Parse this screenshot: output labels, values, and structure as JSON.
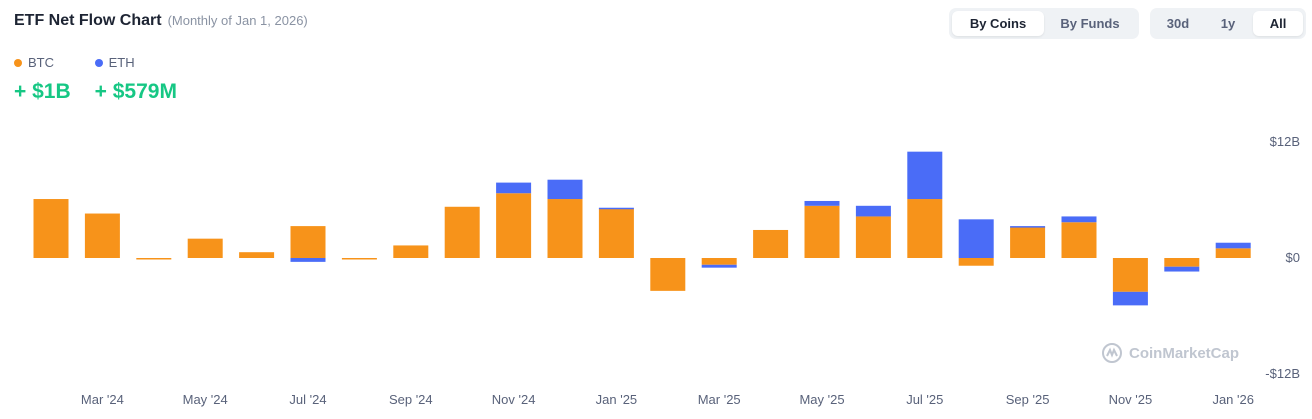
{
  "header": {
    "title": "ETF Net Flow Chart",
    "subtitle": "(Monthly of Jan 1, 2026)"
  },
  "legend": [
    {
      "name": "BTC",
      "value": "+ $1B",
      "color": "#f7931a"
    },
    {
      "name": "ETH",
      "value": "+ $579M",
      "color": "#4a6cf7"
    }
  ],
  "controls": {
    "group_by": [
      "By Coins",
      "By Funds"
    ],
    "group_by_selected": "By Coins",
    "range": [
      "30d",
      "1y",
      "All"
    ],
    "range_selected": "All"
  },
  "watermark": "CoinMarketCap",
  "chart_data": {
    "type": "bar",
    "stacked": true,
    "categories": [
      "Feb '24",
      "Mar '24",
      "Apr '24",
      "May '24",
      "Jun '24",
      "Jul '24",
      "Aug '24",
      "Sep '24",
      "Oct '24",
      "Nov '24",
      "Dec '24",
      "Jan '25",
      "Feb '25",
      "Mar '25",
      "Apr '25",
      "May '25",
      "Jun '25",
      "Jul '25",
      "Aug '25",
      "Sep '25",
      "Oct '25",
      "Nov '25",
      "Dec '25",
      "Jan '26"
    ],
    "series": [
      {
        "name": "BTC",
        "color": "#f7931a",
        "values": [
          6.1,
          4.6,
          -0.1,
          2.0,
          0.6,
          3.3,
          -0.1,
          1.3,
          5.3,
          6.7,
          6.1,
          5.1,
          -3.4,
          -0.7,
          2.9,
          5.4,
          4.3,
          6.1,
          -0.8,
          3.2,
          3.7,
          -3.5,
          -0.9,
          1.0
        ]
      },
      {
        "name": "ETH",
        "color": "#4a6cf7",
        "values": [
          0,
          0,
          0,
          0,
          0,
          -0.4,
          0,
          0,
          0,
          1.1,
          2.0,
          0.1,
          0,
          -0.3,
          0,
          0.5,
          1.1,
          4.9,
          4.0,
          0.1,
          0.6,
          -1.4,
          -0.5,
          0.58
        ]
      }
    ],
    "x_tick_labels": [
      "Mar '24",
      "May '24",
      "Jul '24",
      "Sep '24",
      "Nov '24",
      "Jan '25",
      "Mar '25",
      "May '25",
      "Jul '25",
      "Sep '25",
      "Nov '25",
      "Jan '26"
    ],
    "y_ticks": [
      12,
      0,
      -12
    ],
    "y_tick_labels": [
      "$12B",
      "$0",
      "-$12B"
    ],
    "ylim": [
      -12,
      12
    ],
    "grid": false,
    "legend_position": "top-left"
  }
}
